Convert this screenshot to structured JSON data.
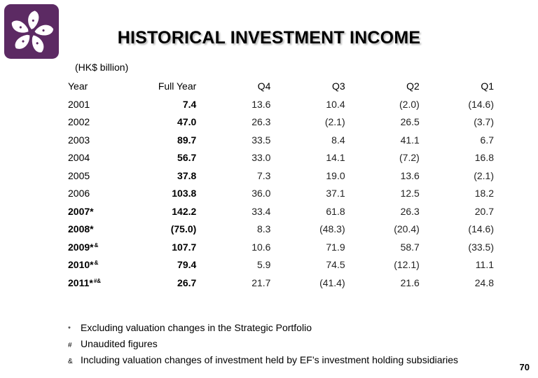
{
  "header": {
    "title": "HISTORICAL INVESTMENT INCOME",
    "unit": "(HK$ billion)"
  },
  "table": {
    "columns": [
      "Year",
      "Full Year",
      "Q4",
      "Q3",
      "Q2",
      "Q1"
    ],
    "rows": [
      {
        "year": "2001",
        "mark": "",
        "full": "7.4",
        "q4": "13.6",
        "q3": "10.4",
        "q2": "(2.0)",
        "q1": "(14.6)"
      },
      {
        "year": "2002",
        "mark": "",
        "full": "47.0",
        "q4": "26.3",
        "q3": "(2.1)",
        "q2": "26.5",
        "q1": "(3.7)"
      },
      {
        "year": "2003",
        "mark": "",
        "full": "89.7",
        "q4": "33.5",
        "q3": "8.4",
        "q2": "41.1",
        "q1": "6.7"
      },
      {
        "year": "2004",
        "mark": "",
        "full": "56.7",
        "q4": "33.0",
        "q3": "14.1",
        "q2": "(7.2)",
        "q1": "16.8"
      },
      {
        "year": "2005",
        "mark": "",
        "full": "37.8",
        "q4": "7.3",
        "q3": "19.0",
        "q2": "13.6",
        "q1": "(2.1)"
      },
      {
        "year": "2006",
        "mark": "",
        "full": "103.8",
        "q4": "36.0",
        "q3": "37.1",
        "q2": "12.5",
        "q1": "18.2"
      },
      {
        "year": "2007*",
        "mark": "",
        "full": "142.2",
        "q4": "33.4",
        "q3": "61.8",
        "q2": "26.3",
        "q1": "20.7"
      },
      {
        "year": "2008*",
        "mark": "",
        "full": "(75.0)",
        "q4": "8.3",
        "q3": "(48.3)",
        "q2": "(20.4)",
        "q1": "(14.6)"
      },
      {
        "year": "2009*",
        "mark": "&",
        "full": "107.7",
        "q4": "10.6",
        "q3": "71.9",
        "q2": "58.7",
        "q1": "(33.5)"
      },
      {
        "year": "2010*",
        "mark": "&",
        "full": "79.4",
        "q4": "5.9",
        "q3": "74.5",
        "q2": "(12.1)",
        "q1": "11.1"
      },
      {
        "year": "2011*",
        "mark": "#&",
        "full": "26.7",
        "q4": "21.7",
        "q3": "(41.4)",
        "q2": "21.6",
        "q1": "24.8"
      }
    ]
  },
  "footnotes": [
    {
      "symbol": "*",
      "text": "Excluding valuation changes in the Strategic Portfolio"
    },
    {
      "symbol": "#",
      "text": "Unaudited figures"
    },
    {
      "symbol": "&",
      "text": "Including valuation changes of investment held by EF’s investment holding subsidiaries"
    }
  ],
  "page_number": "70",
  "colors": {
    "logo": "#5c2a63",
    "title_shadow": "#b9b9b9"
  },
  "icons": {
    "logo": "bauhinia-flower-logo-icon"
  }
}
